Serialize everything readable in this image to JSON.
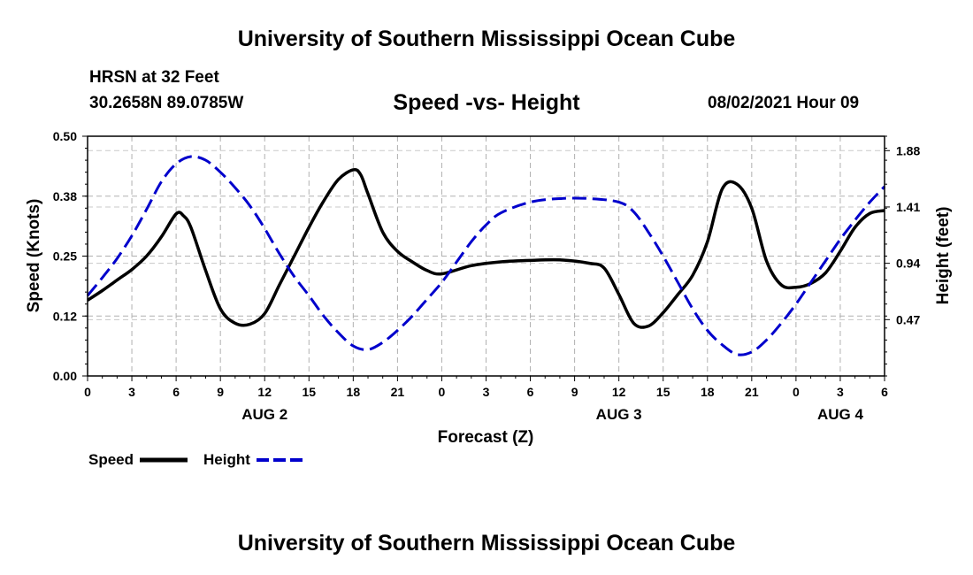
{
  "header": {
    "title": "University of Southern Mississippi Ocean Cube",
    "station": "HRSN at 32 Feet",
    "coords": "30.2658N  89.0785W",
    "chart_title": "Speed -vs- Height",
    "datetime": "08/02/2021 Hour 09"
  },
  "legend": {
    "speed_label": "Speed",
    "height_label": "Height"
  },
  "footer": {
    "title": "University of Southern Mississippi Ocean Cube"
  },
  "chart_data": {
    "type": "line",
    "title": "Speed -vs- Height",
    "xlabel": "Forecast (Z)",
    "ylabel": "Speed (Knots)",
    "y2label": "Height (feet)",
    "x_range_hours": [
      0,
      54
    ],
    "x_tick_step_hours": 3,
    "x_tick_labels": [
      "0",
      "3",
      "6",
      "9",
      "12",
      "15",
      "18",
      "21",
      "0",
      "3",
      "6",
      "9",
      "12",
      "15",
      "18",
      "21",
      "0",
      "3",
      "6"
    ],
    "day_labels": [
      {
        "label": "AUG 2",
        "hour": 12
      },
      {
        "label": "AUG 3",
        "hour": 36
      },
      {
        "label": "AUG 4",
        "hour": 51
      }
    ],
    "ylim": [
      0,
      0.5
    ],
    "y_ticks": [
      0.0,
      0.125,
      0.25,
      0.375,
      0.5
    ],
    "y_tick_labels": [
      "0.00",
      "0.12",
      "0.25",
      "0.38",
      "0.50"
    ],
    "y2lim": [
      0,
      2.0
    ],
    "y2_ticks": [
      0.47,
      0.94,
      1.41,
      1.88
    ],
    "y2_tick_labels": [
      "0.47",
      "0.94",
      "1.41",
      "1.88"
    ],
    "grid": true,
    "series": [
      {
        "name": "Speed",
        "axis": "left",
        "color": "#000000",
        "style": "solid",
        "x": [
          0,
          1,
          2,
          3,
          4,
          5,
          6,
          6.5,
          7,
          8,
          9,
          10,
          11,
          12,
          13,
          14,
          15,
          16,
          17,
          18,
          18.5,
          19,
          20,
          21,
          22,
          23,
          24,
          26,
          28,
          30,
          32,
          34,
          35,
          36,
          37,
          38,
          39,
          40,
          41,
          42,
          43,
          44,
          45,
          46,
          47,
          48,
          49,
          50,
          51,
          52,
          53,
          54
        ],
        "values": [
          0.158,
          0.178,
          0.2,
          0.222,
          0.25,
          0.29,
          0.338,
          0.334,
          0.31,
          0.22,
          0.14,
          0.11,
          0.108,
          0.13,
          0.19,
          0.25,
          0.31,
          0.365,
          0.41,
          0.43,
          0.42,
          0.38,
          0.3,
          0.26,
          0.238,
          0.22,
          0.213,
          0.23,
          0.238,
          0.241,
          0.242,
          0.235,
          0.225,
          0.17,
          0.11,
          0.104,
          0.132,
          0.17,
          0.21,
          0.28,
          0.39,
          0.4,
          0.35,
          0.24,
          0.19,
          0.185,
          0.193,
          0.215,
          0.26,
          0.31,
          0.339,
          0.345
        ]
      },
      {
        "name": "Height",
        "axis": "right",
        "color": "#0000cc",
        "style": "dashed",
        "x": [
          0,
          1,
          2,
          3,
          4,
          5,
          6,
          7,
          8,
          9,
          10,
          11,
          12,
          13,
          14,
          15,
          16,
          17,
          18,
          19,
          20,
          21,
          22,
          23,
          24,
          25,
          26,
          27,
          28,
          30,
          32,
          34,
          36,
          37,
          38,
          39,
          40,
          41,
          42,
          43,
          44,
          45,
          46,
          47,
          48,
          49,
          50,
          51,
          52,
          53,
          54
        ],
        "values": [
          0.67,
          0.82,
          0.98,
          1.17,
          1.39,
          1.62,
          1.77,
          1.83,
          1.8,
          1.7,
          1.57,
          1.42,
          1.23,
          1.02,
          0.83,
          0.67,
          0.5,
          0.36,
          0.25,
          0.22,
          0.28,
          0.38,
          0.5,
          0.64,
          0.78,
          0.95,
          1.12,
          1.26,
          1.36,
          1.45,
          1.48,
          1.48,
          1.45,
          1.37,
          1.2,
          1.0,
          0.78,
          0.56,
          0.38,
          0.26,
          0.18,
          0.2,
          0.3,
          0.44,
          0.6,
          0.78,
          0.96,
          1.14,
          1.3,
          1.45,
          1.58
        ]
      }
    ]
  }
}
